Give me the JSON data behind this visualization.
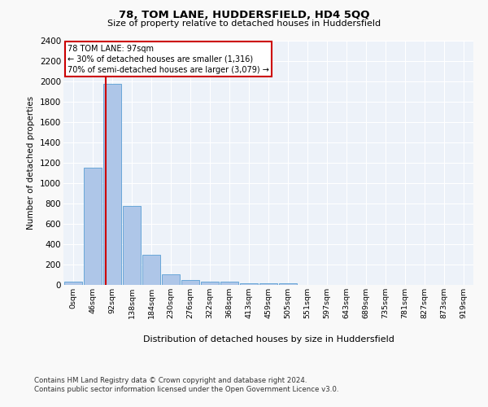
{
  "title1": "78, TOM LANE, HUDDERSFIELD, HD4 5QQ",
  "title2": "Size of property relative to detached houses in Huddersfield",
  "xlabel": "Distribution of detached houses by size in Huddersfield",
  "ylabel": "Number of detached properties",
  "footnote1": "Contains HM Land Registry data © Crown copyright and database right 2024.",
  "footnote2": "Contains public sector information licensed under the Open Government Licence v3.0.",
  "annotation_line1": "78 TOM LANE: 97sqm",
  "annotation_line2": "← 30% of detached houses are smaller (1,316)",
  "annotation_line3": "70% of semi-detached houses are larger (3,079) →",
  "bar_color": "#aec6e8",
  "bar_edge_color": "#5a9fd4",
  "categories": [
    "0sqm",
    "46sqm",
    "92sqm",
    "138sqm",
    "184sqm",
    "230sqm",
    "276sqm",
    "322sqm",
    "368sqm",
    "413sqm",
    "459sqm",
    "505sqm",
    "551sqm",
    "597sqm",
    "643sqm",
    "689sqm",
    "735sqm",
    "781sqm",
    "827sqm",
    "873sqm",
    "919sqm"
  ],
  "values": [
    35,
    1150,
    1980,
    775,
    300,
    105,
    50,
    35,
    30,
    20,
    15,
    15,
    0,
    0,
    0,
    0,
    0,
    0,
    0,
    0,
    0
  ],
  "ylim": [
    0,
    2400
  ],
  "yticks": [
    0,
    200,
    400,
    600,
    800,
    1000,
    1200,
    1400,
    1600,
    1800,
    2000,
    2200,
    2400
  ],
  "background_color": "#edf2f9",
  "grid_color": "#ffffff",
  "annotation_box_color": "#ffffff",
  "annotation_box_edge": "#cc0000",
  "red_line_color": "#cc0000",
  "fig_background": "#f9f9f9"
}
